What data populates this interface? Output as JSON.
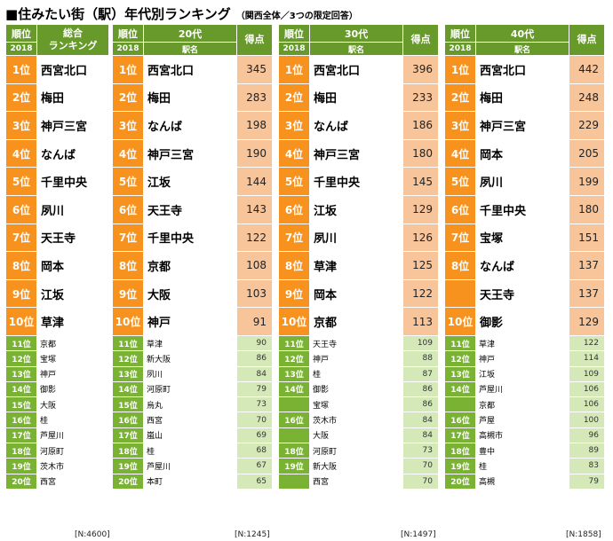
{
  "title": "■住みたい街（駅）年代別ランキング",
  "subtitle": "（関西全体／3つの限定回答）",
  "headers": {
    "rank": "順位",
    "year": "2018",
    "overall": "総合\nランキング",
    "station": "駅名",
    "score": "得点",
    "age20": "20代",
    "age30": "30代",
    "age40": "40代"
  },
  "overall": [
    {
      "rank": "1位",
      "station": "西宮北口"
    },
    {
      "rank": "2位",
      "station": "梅田"
    },
    {
      "rank": "3位",
      "station": "神戸三宮"
    },
    {
      "rank": "4位",
      "station": "なんば"
    },
    {
      "rank": "5位",
      "station": "千里中央"
    },
    {
      "rank": "6位",
      "station": "夙川"
    },
    {
      "rank": "7位",
      "station": "天王寺"
    },
    {
      "rank": "8位",
      "station": "岡本"
    },
    {
      "rank": "9位",
      "station": "江坂"
    },
    {
      "rank": "10位",
      "station": "草津"
    },
    {
      "rank": "11位",
      "station": "京都"
    },
    {
      "rank": "12位",
      "station": "宝塚"
    },
    {
      "rank": "13位",
      "station": "神戸"
    },
    {
      "rank": "14位",
      "station": "御影"
    },
    {
      "rank": "15位",
      "station": "大阪"
    },
    {
      "rank": "16位",
      "station": "桂"
    },
    {
      "rank": "17位",
      "station": "芦屋川"
    },
    {
      "rank": "18位",
      "station": "河原町"
    },
    {
      "rank": "19位",
      "station": "茨木市"
    },
    {
      "rank": "20位",
      "station": "西宮"
    }
  ],
  "age20": [
    {
      "rank": "1位",
      "station": "西宮北口",
      "score": "345"
    },
    {
      "rank": "2位",
      "station": "梅田",
      "score": "283"
    },
    {
      "rank": "3位",
      "station": "なんば",
      "score": "198"
    },
    {
      "rank": "4位",
      "station": "神戸三宮",
      "score": "190"
    },
    {
      "rank": "5位",
      "station": "江坂",
      "score": "144"
    },
    {
      "rank": "6位",
      "station": "天王寺",
      "score": "143"
    },
    {
      "rank": "7位",
      "station": "千里中央",
      "score": "122"
    },
    {
      "rank": "8位",
      "station": "京都",
      "score": "108"
    },
    {
      "rank": "9位",
      "station": "大阪",
      "score": "103"
    },
    {
      "rank": "10位",
      "station": "神戸",
      "score": "91"
    },
    {
      "rank": "11位",
      "station": "草津",
      "score": "90"
    },
    {
      "rank": "12位",
      "station": "新大阪",
      "score": "86"
    },
    {
      "rank": "13位",
      "station": "夙川",
      "score": "84"
    },
    {
      "rank": "14位",
      "station": "河原町",
      "score": "79"
    },
    {
      "rank": "15位",
      "station": "烏丸",
      "score": "73"
    },
    {
      "rank": "16位",
      "station": "西宮",
      "score": "70"
    },
    {
      "rank": "17位",
      "station": "嵐山",
      "score": "69"
    },
    {
      "rank": "18位",
      "station": "桂",
      "score": "68"
    },
    {
      "rank": "19位",
      "station": "芦屋川",
      "score": "67"
    },
    {
      "rank": "20位",
      "station": "本町",
      "score": "65"
    }
  ],
  "age30": [
    {
      "rank": "1位",
      "station": "西宮北口",
      "score": "396"
    },
    {
      "rank": "2位",
      "station": "梅田",
      "score": "233"
    },
    {
      "rank": "3位",
      "station": "なんば",
      "score": "186"
    },
    {
      "rank": "4位",
      "station": "神戸三宮",
      "score": "180"
    },
    {
      "rank": "5位",
      "station": "千里中央",
      "score": "145"
    },
    {
      "rank": "6位",
      "station": "江坂",
      "score": "129"
    },
    {
      "rank": "7位",
      "station": "夙川",
      "score": "126"
    },
    {
      "rank": "8位",
      "station": "草津",
      "score": "125"
    },
    {
      "rank": "9位",
      "station": "岡本",
      "score": "122"
    },
    {
      "rank": "10位",
      "station": "京都",
      "score": "113"
    },
    {
      "rank": "11位",
      "station": "天王寺",
      "score": "109"
    },
    {
      "rank": "12位",
      "station": "神戸",
      "score": "88"
    },
    {
      "rank": "13位",
      "station": "桂",
      "score": "87"
    },
    {
      "rank": "14位",
      "station": "御影",
      "score": "86"
    },
    {
      "rank": "",
      "station": "宝塚",
      "score": "86"
    },
    {
      "rank": "16位",
      "station": "茨木市",
      "score": "84"
    },
    {
      "rank": "",
      "station": "大阪",
      "score": "84"
    },
    {
      "rank": "18位",
      "station": "河原町",
      "score": "73"
    },
    {
      "rank": "19位",
      "station": "新大阪",
      "score": "70"
    },
    {
      "rank": "",
      "station": "西宮",
      "score": "70"
    }
  ],
  "age40": [
    {
      "rank": "1位",
      "station": "西宮北口",
      "score": "442"
    },
    {
      "rank": "2位",
      "station": "梅田",
      "score": "248"
    },
    {
      "rank": "3位",
      "station": "神戸三宮",
      "score": "229"
    },
    {
      "rank": "4位",
      "station": "岡本",
      "score": "205"
    },
    {
      "rank": "5位",
      "station": "夙川",
      "score": "199"
    },
    {
      "rank": "6位",
      "station": "千里中央",
      "score": "180"
    },
    {
      "rank": "7位",
      "station": "宝塚",
      "score": "151"
    },
    {
      "rank": "8位",
      "station": "なんば",
      "score": "137"
    },
    {
      "rank": "",
      "station": "天王寺",
      "score": "137"
    },
    {
      "rank": "10位",
      "station": "御影",
      "score": "129"
    },
    {
      "rank": "11位",
      "station": "草津",
      "score": "122"
    },
    {
      "rank": "12位",
      "station": "神戸",
      "score": "114"
    },
    {
      "rank": "13位",
      "station": "江坂",
      "score": "109"
    },
    {
      "rank": "14位",
      "station": "芦屋川",
      "score": "106"
    },
    {
      "rank": "",
      "station": "京都",
      "score": "106"
    },
    {
      "rank": "16位",
      "station": "芦屋",
      "score": "100"
    },
    {
      "rank": "17位",
      "station": "高槻市",
      "score": "96"
    },
    {
      "rank": "18位",
      "station": "豊中",
      "score": "89"
    },
    {
      "rank": "19位",
      "station": "桂",
      "score": "83"
    },
    {
      "rank": "20位",
      "station": "高槻",
      "score": "79"
    }
  ],
  "notes": {
    "overall": "[N:4600]",
    "age20": "[N:1245]",
    "age30": "[N:1497]",
    "age40": "[N:1858]"
  },
  "colors": {
    "header_green": "#679a2a",
    "rank_orange": "#f7921e",
    "score_peach": "#f8c49a",
    "rank_green": "#7ab333",
    "score_lightgreen": "#d5e8b8"
  }
}
